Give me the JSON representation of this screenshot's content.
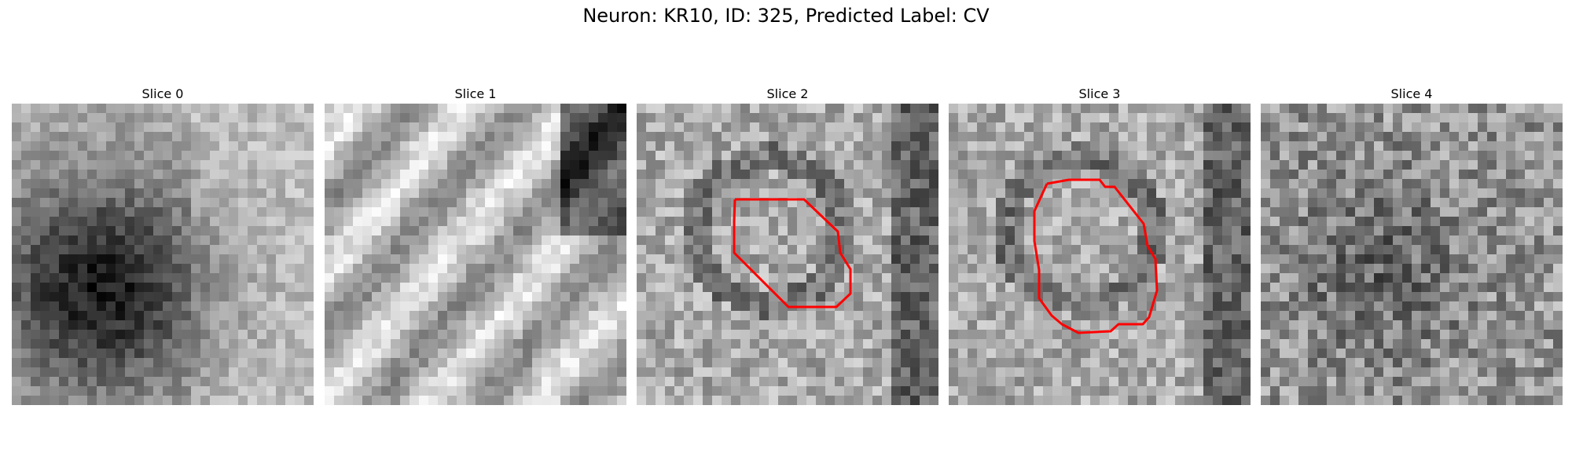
{
  "title": "Neuron: KR10, ID: 325, Predicted Label: CV",
  "slices": [
    {
      "label": "Slice 0",
      "has_outline": false,
      "pattern": "dark-blob"
    },
    {
      "label": "Slice 1",
      "has_outline": false,
      "pattern": "diagonal-stripes"
    },
    {
      "label": "Slice 2",
      "has_outline": true,
      "pattern": "cell-noise"
    },
    {
      "label": "Slice 3",
      "has_outline": true,
      "pattern": "cell-noise"
    },
    {
      "label": "Slice 4",
      "has_outline": false,
      "pattern": "dark-noise"
    }
  ],
  "colors": {
    "outline": "#ff0000",
    "colormap": "grayscale"
  }
}
